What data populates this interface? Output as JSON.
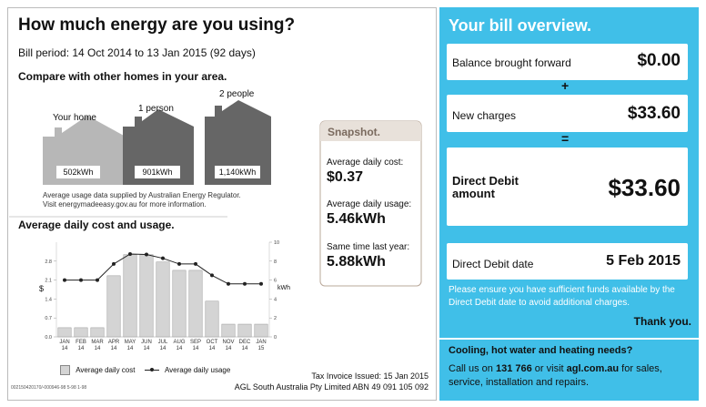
{
  "header": {
    "title": "How much energy are you using?",
    "bill_period": "Bill period: 14 Oct 2014 to 13 Jan 2015 (92 days)"
  },
  "compare": {
    "title": "Compare with other homes in your area.",
    "homes": [
      {
        "label": "Your home",
        "value": "502kWh"
      },
      {
        "label": "1 person",
        "value": "901kWh"
      },
      {
        "label": "2 people",
        "value": "1,140kWh"
      }
    ],
    "note": [
      "Average usage data supplied by Australian Energy Regulator.",
      "Visit energymadeeasy.gov.au for more information."
    ]
  },
  "chart_data": {
    "type": "bar",
    "title": "Average daily cost and usage.",
    "categories": [
      "JAN 14",
      "FEB 14",
      "MAR 14",
      "APR 14",
      "MAY 14",
      "JUN 14",
      "JUL 14",
      "AUG 14",
      "SEP 14",
      "OCT 14",
      "NOV 14",
      "DEC 14",
      "JAN 15"
    ],
    "series": [
      {
        "name": "Average daily cost",
        "type": "bar",
        "color": "#d4d4d4",
        "values": [
          0.34,
          0.34,
          0.34,
          2.26,
          3.04,
          3.04,
          2.77,
          2.46,
          2.46,
          1.32,
          0.47,
          0.47,
          0.47
        ]
      },
      {
        "name": "Average daily usage",
        "type": "line",
        "color": "#222222",
        "axis": "y2",
        "values": [
          6.0,
          6.0,
          6.0,
          7.7,
          8.75,
          8.7,
          8.3,
          7.7,
          7.7,
          6.5,
          5.6,
          5.6,
          5.6
        ]
      }
    ],
    "ylabel": "$",
    "y2label": "kWh",
    "ylim": [
      0,
      3.5
    ],
    "yticks": [
      {
        "value": 0,
        "label": "0.0"
      },
      0.7,
      1.4,
      2.1,
      2.8
    ],
    "y2lim": [
      0,
      10
    ],
    "y2ticks": [
      0,
      2,
      4,
      6,
      8,
      10
    ]
  },
  "snapshot": {
    "title": "Snapshot.",
    "items": [
      {
        "label": "Average daily cost:",
        "value": "$0.37"
      },
      {
        "label": "Average daily usage:",
        "value": "5.46kWh"
      },
      {
        "label": "Same time last year:",
        "value": "5.88kWh"
      }
    ]
  },
  "footer": {
    "code": "002150420170/-000946-98 5-98 1-98",
    "issued": "Tax Invoice Issued: 15 Jan 2015",
    "company": "AGL South Australia Pty Limited ABN 49 091 105 092"
  },
  "overview": {
    "title": "Your bill overview.",
    "balance": {
      "label": "Balance brought forward",
      "value": "$0.00"
    },
    "plus": "+",
    "new_charges": {
      "label": "New charges",
      "value": "$33.60"
    },
    "equals": "=",
    "direct_debit": {
      "label": "Direct Debit amount",
      "value": "$33.60"
    },
    "date": {
      "label": "Direct Debit date",
      "value": "5 Feb 2015"
    },
    "note": "Please ensure you have sufficient funds available by the Direct Debit date to avoid additional charges.",
    "thanks": "Thank you."
  },
  "contact": {
    "title": "Cooling, hot water and heating needs?",
    "parts": [
      "Call us on ",
      "131 766",
      " or visit ",
      "agl.com.au",
      " for sales, service, installation and repairs."
    ]
  }
}
